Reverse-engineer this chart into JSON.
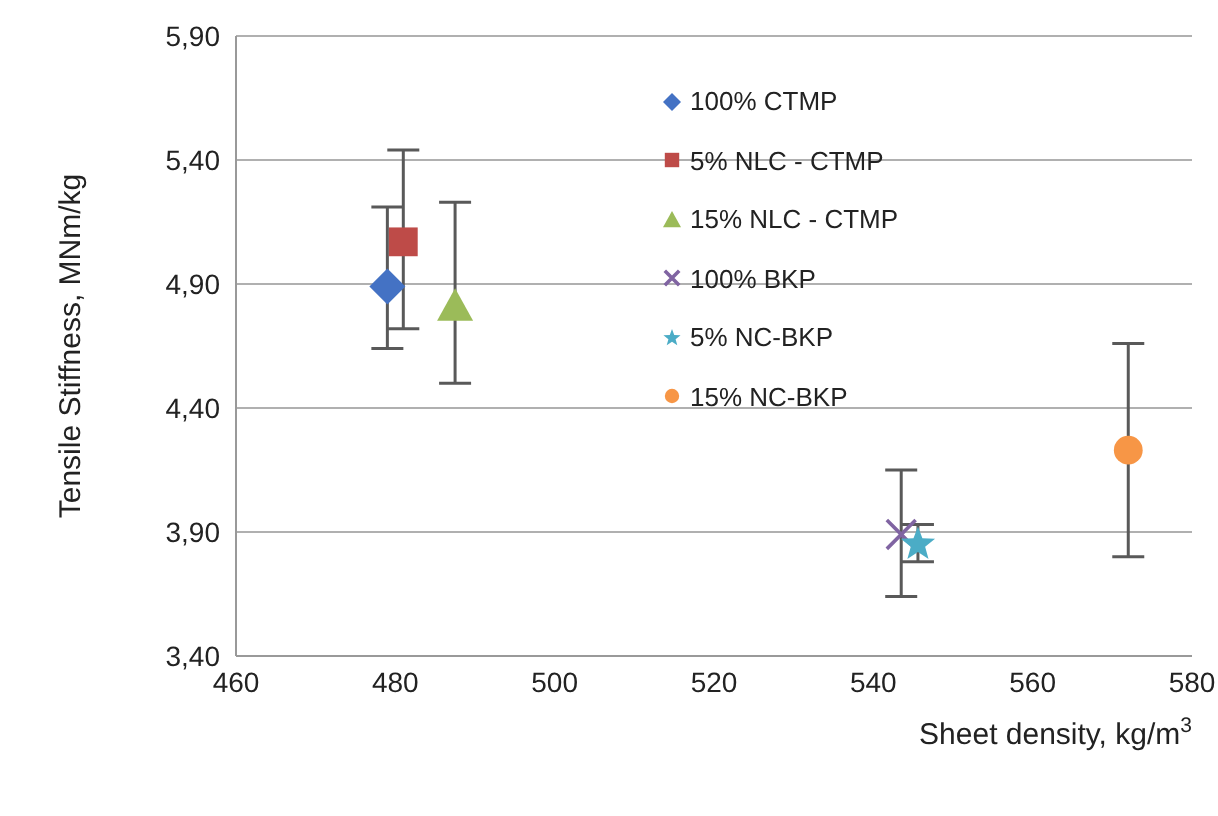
{
  "chart_data": {
    "type": "scatter",
    "xlabel": "Sheet density, kg/m$^{3}$",
    "ylabel": "Tensile Stiffness, MNm/kg",
    "xlim": [
      460,
      580
    ],
    "xticks": [
      460,
      480,
      500,
      520,
      540,
      560,
      580
    ],
    "ylim": [
      3.4,
      5.9
    ],
    "yticks": [
      {
        "value": 3.4,
        "label": "3,40"
      },
      {
        "value": 3.9,
        "label": "3,90"
      },
      {
        "value": 4.4,
        "label": "4,40"
      },
      {
        "value": 4.9,
        "label": "4,90"
      },
      {
        "value": 5.4,
        "label": "5,40"
      },
      {
        "value": 5.9,
        "label": "5,90"
      }
    ],
    "grid": "y",
    "legend": "top",
    "series": [
      {
        "name": "100% CTMP",
        "color": "#4472c4",
        "marker": "diamond",
        "x": [
          479
        ],
        "values": [
          4.89
        ],
        "errors": [
          [
            4.64,
            5.21
          ]
        ]
      },
      {
        "name": "5% NLC - CTMP",
        "color": "#be4b48",
        "marker": "square",
        "x": [
          481
        ],
        "values": [
          5.07
        ],
        "errors": [
          [
            4.72,
            5.44
          ]
        ]
      },
      {
        "name": "15% NLC - CTMP",
        "color": "#9bbb59",
        "marker": "triangle",
        "x": [
          487.5
        ],
        "values": [
          4.81
        ],
        "errors": [
          [
            4.5,
            5.23
          ]
        ]
      },
      {
        "name": "100% BKP",
        "color": "#8064a2",
        "marker": "cross",
        "x": [
          543.5
        ],
        "values": [
          3.89
        ],
        "errors": [
          [
            3.64,
            4.15
          ]
        ]
      },
      {
        "name": "5% NC-BKP",
        "color": "#4bacc6",
        "marker": "star",
        "x": [
          545.6
        ],
        "values": [
          3.85
        ],
        "errors": [
          [
            3.78,
            3.93
          ]
        ]
      },
      {
        "name": "15% NC-BKP",
        "color": "#f79646",
        "marker": "circle",
        "x": [
          572
        ],
        "values": [
          4.23
        ],
        "errors": [
          [
            3.8,
            4.66
          ]
        ]
      }
    ]
  }
}
